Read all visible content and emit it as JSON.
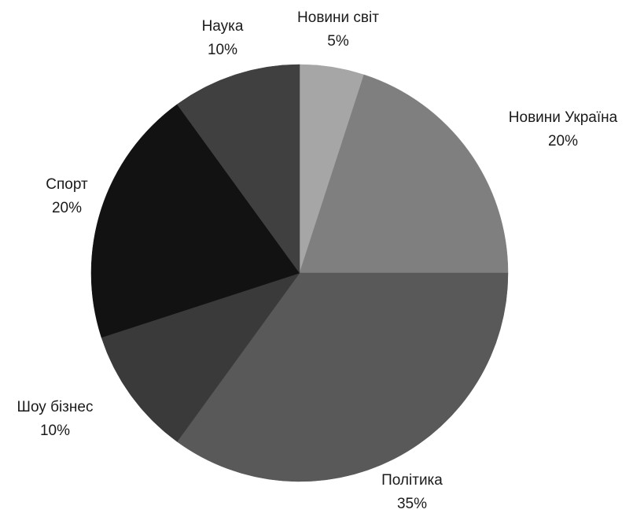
{
  "chart_data": {
    "type": "pie",
    "start": "top",
    "direction": "clockwise",
    "slices": [
      {
        "label": "Новини світ",
        "value": 5,
        "value_label": "5%",
        "color": "#a6a6a6"
      },
      {
        "label": "Новини Україна",
        "value": 20,
        "value_label": "20%",
        "color": "#7f7f7f"
      },
      {
        "label": "Політика",
        "value": 35,
        "value_label": "35%",
        "color": "#595959"
      },
      {
        "label": "Шоу бізнес",
        "value": 10,
        "value_label": "10%",
        "color": "#3a3a3a"
      },
      {
        "label": "Спорт",
        "value": 20,
        "value_label": "20%",
        "color": "#121212"
      },
      {
        "label": "Наука",
        "value": 10,
        "value_label": "10%",
        "color": "#404040"
      }
    ]
  }
}
